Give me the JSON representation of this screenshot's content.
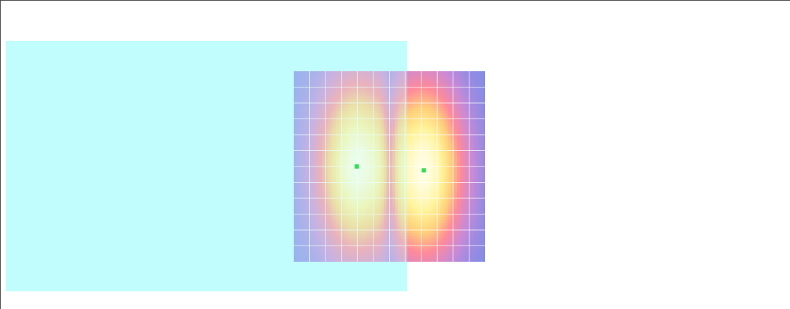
{
  "canvas": {
    "background_color": "#ffffff",
    "frame_color": "#4a4a4a"
  },
  "cyan_panel": {
    "color": "#c2fdfd",
    "overlay_alpha": 0.35
  },
  "field_viewer": {
    "grid": {
      "rows": 12,
      "cols": 12,
      "line_color": "#ffffff"
    },
    "colormap": [
      "#7b8ce8",
      "#c88ad7",
      "#ff8a9a",
      "#ffd07a",
      "#fff39a",
      "#fffde0"
    ],
    "charges": [
      {
        "name": "left-charge",
        "u": 0.33,
        "v": 0.5,
        "strength": 1.0
      },
      {
        "name": "right-charge",
        "u": 0.68,
        "v": 0.52,
        "strength": 1.0
      }
    ],
    "marker_color": "#33dd55"
  }
}
